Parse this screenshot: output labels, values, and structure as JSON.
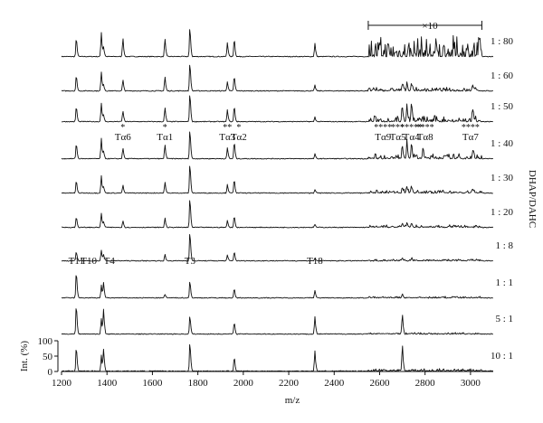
{
  "chart_data": {
    "type": "line",
    "x_label": "m/z",
    "y_label": "Int. (%)",
    "side_label": "DHAP/DAHC",
    "x_range": [
      1200,
      3100
    ],
    "x_ticks": [
      1200,
      1400,
      1600,
      1800,
      2000,
      2200,
      2400,
      2600,
      2800,
      3000
    ],
    "y_ticks": [
      0,
      50,
      100
    ],
    "zoom_annotation": "×10",
    "zoom_range": [
      2550,
      3050
    ],
    "series": [
      {
        "name": "1 : 80",
        "peaks": [
          [
            1265,
            60
          ],
          [
            1375,
            78
          ],
          [
            1385,
            30
          ],
          [
            1470,
            60
          ],
          [
            1655,
            58
          ],
          [
            1765,
            95
          ],
          [
            1930,
            45
          ],
          [
            1960,
            58
          ],
          [
            2315,
            42
          ]
        ],
        "zoom_noise": 75
      },
      {
        "name": "1 : 60",
        "peaks": [
          [
            1265,
            50
          ],
          [
            1375,
            60
          ],
          [
            1385,
            20
          ],
          [
            1470,
            35
          ],
          [
            1655,
            45
          ],
          [
            1765,
            92
          ],
          [
            1930,
            30
          ],
          [
            1960,
            48
          ],
          [
            2315,
            18
          ],
          [
            2700,
            22
          ],
          [
            2720,
            20
          ],
          [
            2740,
            25
          ],
          [
            3010,
            20
          ]
        ],
        "zoom_noise": 12
      },
      {
        "name": "1 : 50",
        "peaks": [
          [
            1265,
            50
          ],
          [
            1375,
            60
          ],
          [
            1385,
            20
          ],
          [
            1470,
            35
          ],
          [
            1655,
            45
          ],
          [
            1765,
            92
          ],
          [
            1930,
            38
          ],
          [
            1960,
            50
          ],
          [
            2315,
            15
          ],
          [
            2700,
            45
          ],
          [
            2720,
            55
          ],
          [
            2740,
            60
          ],
          [
            3010,
            35
          ]
        ],
        "zoom_noise": 22
      },
      {
        "name": "1 : 40",
        "peaks": [
          [
            1265,
            50
          ],
          [
            1375,
            65
          ],
          [
            1385,
            22
          ],
          [
            1470,
            35
          ],
          [
            1655,
            45
          ],
          [
            1765,
            95
          ],
          [
            1930,
            35
          ],
          [
            1960,
            55
          ],
          [
            2315,
            15
          ],
          [
            2700,
            40
          ],
          [
            2720,
            45
          ],
          [
            2740,
            50
          ],
          [
            2790,
            25
          ],
          [
            3010,
            25
          ]
        ],
        "zoom_noise": 18
      },
      {
        "name": "1 : 30",
        "peaks": [
          [
            1265,
            40
          ],
          [
            1375,
            55
          ],
          [
            1385,
            20
          ],
          [
            1470,
            25
          ],
          [
            1655,
            35
          ],
          [
            1765,
            95
          ],
          [
            1930,
            28
          ],
          [
            1960,
            45
          ],
          [
            2315,
            12
          ],
          [
            2700,
            18
          ],
          [
            2720,
            20
          ],
          [
            2740,
            22
          ],
          [
            3010,
            12
          ]
        ],
        "zoom_noise": 10
      },
      {
        "name": "1 : 20",
        "peaks": [
          [
            1265,
            35
          ],
          [
            1375,
            45
          ],
          [
            1385,
            18
          ],
          [
            1470,
            22
          ],
          [
            1655,
            30
          ],
          [
            1765,
            95
          ],
          [
            1930,
            22
          ],
          [
            1960,
            38
          ],
          [
            2315,
            10
          ],
          [
            2700,
            12
          ],
          [
            2720,
            15
          ],
          [
            2740,
            14
          ]
        ],
        "zoom_noise": 8
      },
      {
        "name": "1 : 8",
        "peaks": [
          [
            1265,
            30
          ],
          [
            1375,
            35
          ],
          [
            1385,
            20
          ],
          [
            1655,
            20
          ],
          [
            1765,
            95
          ],
          [
            1930,
            18
          ],
          [
            1960,
            30
          ],
          [
            2315,
            8
          ],
          [
            2700,
            8
          ],
          [
            2740,
            8
          ]
        ],
        "zoom_noise": 6
      },
      {
        "name": "1 : 1",
        "peaks": [
          [
            1265,
            85
          ],
          [
            1375,
            40
          ],
          [
            1385,
            48
          ],
          [
            1655,
            12
          ],
          [
            1765,
            55
          ],
          [
            1960,
            30
          ],
          [
            2315,
            25
          ],
          [
            2700,
            10
          ]
        ],
        "zoom_noise": 5
      },
      {
        "name": "5 : 1",
        "peaks": [
          [
            1265,
            95
          ],
          [
            1375,
            50
          ],
          [
            1385,
            78
          ],
          [
            1765,
            60
          ],
          [
            1960,
            40
          ],
          [
            2315,
            55
          ],
          [
            2700,
            62
          ]
        ],
        "zoom_noise": 5
      },
      {
        "name": "10 : 1",
        "peaks": [
          [
            1265,
            80
          ],
          [
            1375,
            50
          ],
          [
            1385,
            70
          ],
          [
            1765,
            95
          ],
          [
            1960,
            45
          ],
          [
            2315,
            65
          ],
          [
            2700,
            85
          ]
        ],
        "zoom_noise": 8
      }
    ],
    "annotations": [
      {
        "series": "1 : 40",
        "labels": [
          {
            "text": "Tα6",
            "x": 1470
          },
          {
            "text": "Tα1",
            "x": 1655
          },
          {
            "text": "Tα3",
            "x": 1930
          },
          {
            "text": "Tα2",
            "x": 1980
          },
          {
            "text": "Tα9",
            "x": 2615
          },
          {
            "text": "Tα5",
            "x": 2680
          },
          {
            "text": "Tα4",
            "x": 2740
          },
          {
            "text": "Tα8",
            "x": 2800
          },
          {
            "text": "Tα7",
            "x": 3000
          }
        ],
        "stars": [
          {
            "text": "*",
            "x": 1470
          },
          {
            "text": "*",
            "x": 1655
          },
          {
            "text": "**",
            "x": 1930
          },
          {
            "text": "*",
            "x": 1980
          },
          {
            "text": "****",
            "x": 2615
          },
          {
            "text": "***",
            "x": 2680
          },
          {
            "text": "*****",
            "x": 2740
          },
          {
            "text": "****",
            "x": 2800
          },
          {
            "text": "****",
            "x": 3000
          }
        ]
      },
      {
        "series": "1 : 1",
        "labels": [
          {
            "text": "T11",
            "x": 1265
          },
          {
            "text": "T10",
            "x": 1320
          },
          {
            "text": "T4",
            "x": 1410
          },
          {
            "text": "T3",
            "x": 1765
          },
          {
            "text": "T18",
            "x": 2315
          }
        ]
      }
    ]
  }
}
